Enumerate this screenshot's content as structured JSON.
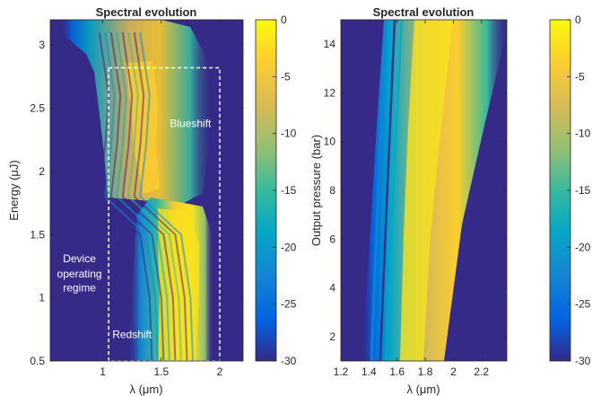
{
  "chart_data": [
    {
      "type": "heatmap",
      "title": "Spectral evolution",
      "xlabel": "λ (μm)",
      "ylabel": "Energy (μJ)",
      "xlim": [
        0.55,
        2.2
      ],
      "ylim": [
        0.5,
        3.2
      ],
      "xticks": [
        "1",
        "1.5",
        "2"
      ],
      "xtick_values": [
        1,
        1.5,
        2
      ],
      "yticks": [
        "0.5",
        "1",
        "1.5",
        "2",
        "2.5",
        "3"
      ],
      "ytick_values": [
        0.5,
        1,
        1.5,
        2,
        2.5,
        3
      ],
      "colorbar": {
        "min": -30,
        "max": 0,
        "ticks": [
          "0",
          "-5",
          "-10",
          "-15",
          "-20",
          "-25",
          "-30"
        ],
        "tick_values": [
          0,
          -5,
          -10,
          -15,
          -20,
          -25,
          -30
        ],
        "colormap": "parula"
      },
      "annotations": [
        {
          "text": "Blueshift",
          "x": 1.75,
          "y": 2.35
        },
        {
          "text": "Device",
          "x": 0.8,
          "y": 1.28
        },
        {
          "text": "operating",
          "x": 0.8,
          "y": 1.16
        },
        {
          "text": "regime",
          "x": 0.8,
          "y": 1.05
        },
        {
          "text": "Redshift",
          "x": 1.25,
          "y": 0.68
        }
      ],
      "operating_region": {
        "x": [
          1.05,
          2.0
        ],
        "y": [
          0.5,
          2.82
        ]
      },
      "spectral_peak_center": [
        {
          "energy": 0.5,
          "wavelength": 1.7
        },
        {
          "energy": 1.0,
          "wavelength": 1.68
        },
        {
          "energy": 1.5,
          "wavelength": 1.6
        },
        {
          "energy": 1.8,
          "wavelength": 1.3
        },
        {
          "energy": 2.2,
          "wavelength": 1.35
        },
        {
          "energy": 2.6,
          "wavelength": 1.38
        },
        {
          "energy": 3.1,
          "wavelength": 1.3
        }
      ]
    },
    {
      "type": "heatmap",
      "title": "Spectral evolution",
      "xlabel": "λ (μm)",
      "ylabel": "Output pressure (bar)",
      "xlim": [
        1.2,
        2.38
      ],
      "ylim": [
        1,
        15
      ],
      "xticks": [
        "1.2",
        "1.4",
        "1.6",
        "1.8",
        "2",
        "2.2"
      ],
      "xtick_values": [
        1.2,
        1.4,
        1.6,
        1.8,
        2,
        2.2
      ],
      "yticks": [
        "2",
        "4",
        "6",
        "8",
        "10",
        "12",
        "14"
      ],
      "ytick_values": [
        2,
        4,
        6,
        8,
        10,
        12,
        14
      ],
      "colorbar": {
        "min": -30,
        "max": 0,
        "ticks": [
          "0",
          "-5",
          "-10",
          "-15",
          "-20",
          "-25",
          "-30"
        ],
        "tick_values": [
          0,
          -5,
          -10,
          -15,
          -20,
          -25,
          -30
        ],
        "colormap": "parula"
      },
      "spectral_peak_center": [
        {
          "pressure": 1,
          "wavelength": 1.62
        },
        {
          "pressure": 8,
          "wavelength": 1.72
        },
        {
          "pressure": 15,
          "wavelength": 1.82
        }
      ]
    }
  ]
}
